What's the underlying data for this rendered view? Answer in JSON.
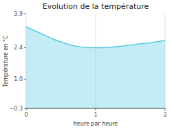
{
  "chart_data": {
    "type": "area",
    "title": "Evolution de la température",
    "xlabel": "heure par heure",
    "ylabel": "Température en °C",
    "color": "#55c8e0",
    "xlim": [
      0,
      2
    ],
    "ylim": [
      -0.3,
      3.9
    ],
    "xticks": [
      0,
      1,
      2
    ],
    "yticks": [
      {
        "value": -0.3,
        "label": "−0.3"
      },
      {
        "value": 1.0,
        "label": "1.0"
      },
      2.4,
      3.9
    ],
    "grid": "x",
    "x": [
      0.0,
      0.1,
      0.2,
      0.3,
      0.4,
      0.5,
      0.6,
      0.7,
      0.8,
      0.9,
      1.0,
      1.1,
      1.2,
      1.3,
      1.4,
      1.5,
      1.6,
      1.7,
      1.8,
      1.9,
      2.0
    ],
    "values": [
      3.32,
      3.18,
      3.04,
      2.9,
      2.76,
      2.65,
      2.55,
      2.47,
      2.42,
      2.4,
      2.39,
      2.39,
      2.41,
      2.44,
      2.47,
      2.51,
      2.55,
      2.58,
      2.62,
      2.67,
      2.72
    ]
  }
}
